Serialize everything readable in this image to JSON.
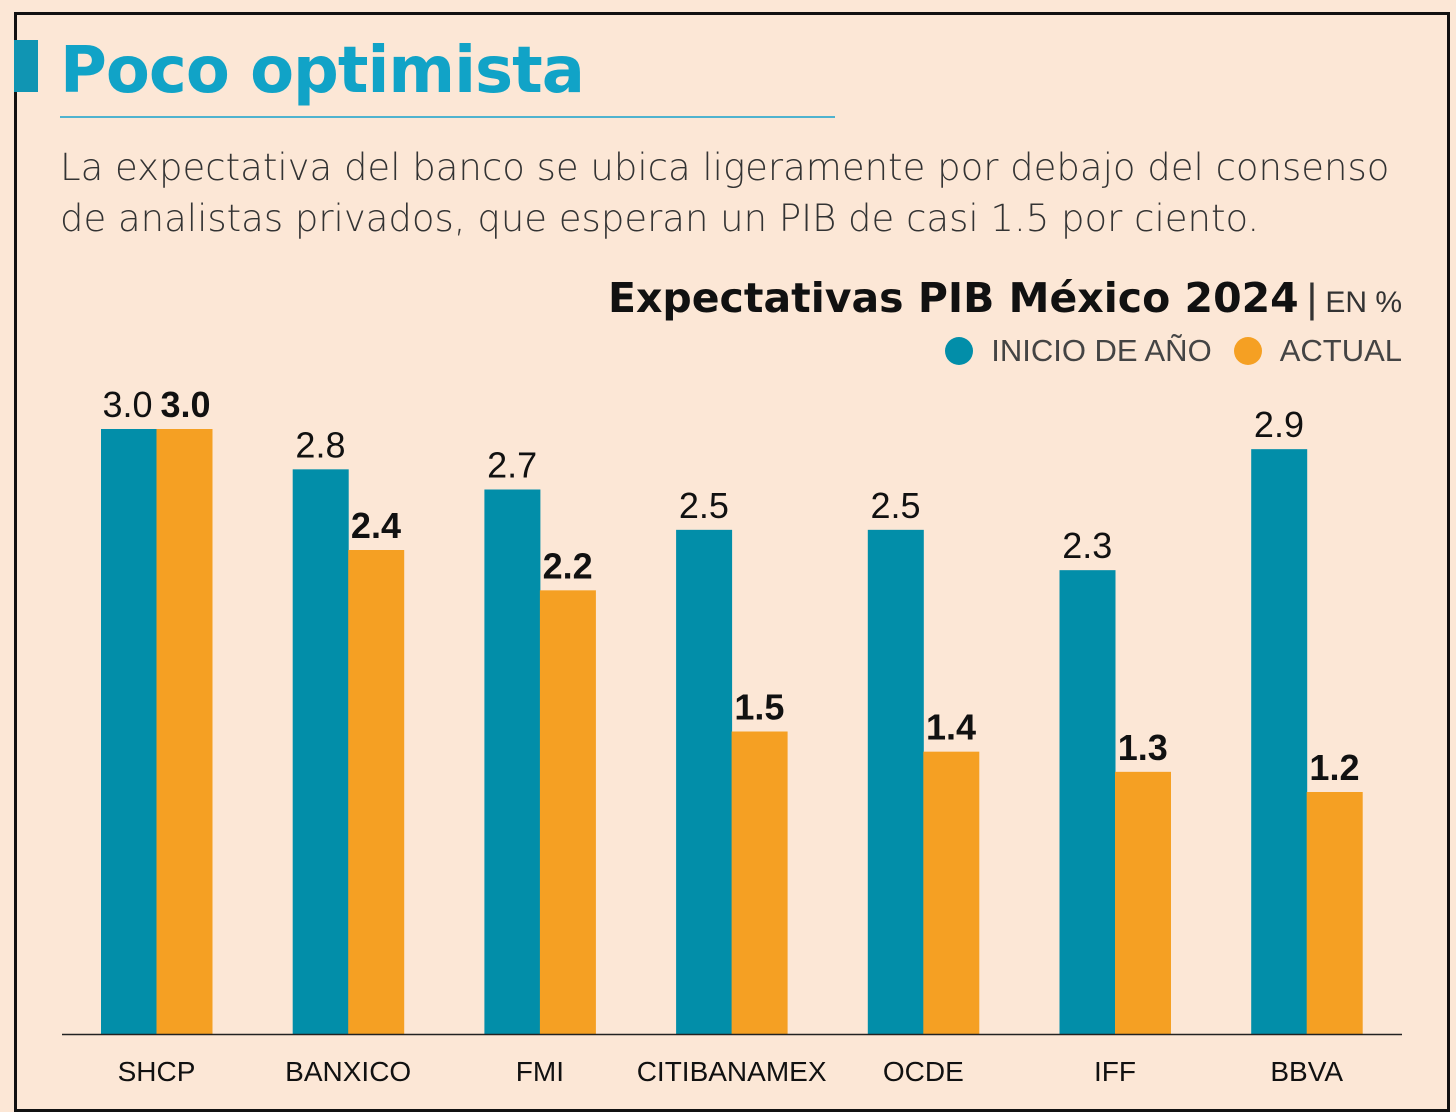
{
  "title": "Poco optimista",
  "subtitle": "La expectativa del banco se ubica ligeramente por debajo del consenso de analistas privados, que esperan un PIB de casi 1.5 por ciento.",
  "colors": {
    "inicio": "#028ea9",
    "actual": "#f5a023",
    "title": "#11a3c7"
  },
  "chart_data": {
    "type": "bar",
    "title": "Expectativas PIB México 2024",
    "unit": "EN %",
    "categories": [
      "SHCP",
      "BANXICO",
      "FMI",
      "CITIBANAMEX",
      "OCDE",
      "IFF",
      "BBVA"
    ],
    "series": [
      {
        "name": "INICIO DE AÑO",
        "values": [
          3.0,
          2.8,
          2.7,
          2.5,
          2.5,
          2.3,
          2.9
        ]
      },
      {
        "name": "ACTUAL",
        "values": [
          3.0,
          2.4,
          2.2,
          1.5,
          1.4,
          1.3,
          1.2
        ]
      }
    ],
    "ylim": [
      0,
      3.0
    ],
    "grid": false,
    "legend_position": "top-right",
    "value_labels": {
      "INICIO DE AÑO": [
        "3.0",
        "2.8",
        "2.7",
        "2.5",
        "2.5",
        "2.3",
        "2.9"
      ],
      "ACTUAL": [
        "3.0",
        "2.4",
        "2.2",
        "1.5",
        "1.4",
        "1.3",
        "1.2"
      ]
    }
  }
}
